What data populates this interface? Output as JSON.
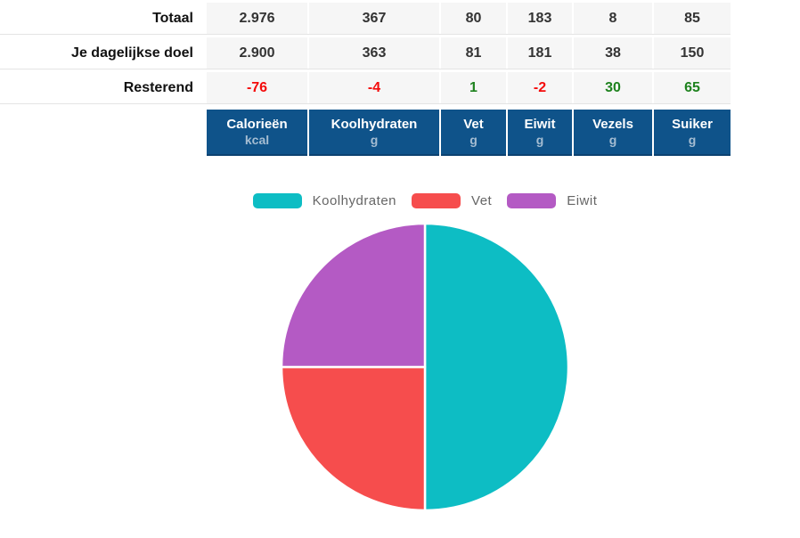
{
  "page": {
    "background": "#ffffff"
  },
  "colors": {
    "header_bg": "#0f538a",
    "header_border": "#0c4271",
    "header_text": "#ffffff",
    "header_unit_text": "#a5bdd2",
    "row_bg": "#f6f6f6",
    "value_text": "#333333",
    "negative": "#f40b0b",
    "positive": "#1e821e"
  },
  "table": {
    "columns": [
      {
        "name": "Calorieën",
        "unit": "kcal"
      },
      {
        "name": "Koolhydraten",
        "unit": "g"
      },
      {
        "name": "Vet",
        "unit": "g"
      },
      {
        "name": "Eiwit",
        "unit": "g"
      },
      {
        "name": "Vezels",
        "unit": "g"
      },
      {
        "name": "Suiker",
        "unit": "g"
      }
    ],
    "rows": [
      {
        "label": "Totaal",
        "values": [
          "2.976",
          "367",
          "80",
          "183",
          "8",
          "85"
        ]
      },
      {
        "label": "Je dagelijkse doel",
        "values": [
          "2.900",
          "363",
          "81",
          "181",
          "38",
          "150"
        ]
      },
      {
        "label": "Resterend",
        "values": [
          "-76",
          "-4",
          "1",
          "-2",
          "30",
          "65"
        ],
        "value_colors": [
          "#f40b0b",
          "#f40b0b",
          "#1e821e",
          "#f40b0b",
          "#1e821e",
          "#1e821e"
        ]
      }
    ]
  },
  "chart_data": {
    "type": "pie",
    "title": "",
    "categories": [
      "Koolhydraten",
      "Vet",
      "Eiwit"
    ],
    "values": [
      50,
      25,
      25
    ],
    "unit": "%",
    "colors": [
      "#0dbdc4",
      "#f64d4d",
      "#b45ac4"
    ],
    "legend_position": "top",
    "slice_border_color": "#ffffff",
    "start_angle_deg": 0,
    "direction": "clockwise"
  }
}
